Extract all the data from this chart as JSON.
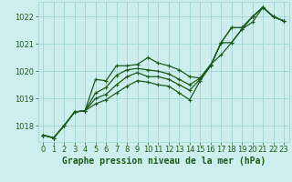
{
  "xlabel": "Graphe pression niveau de la mer (hPa)",
  "background_color": "#ceeeed",
  "grid_color": "#9dd4d3",
  "line_color": "#1a5c1a",
  "ylim": [
    1017.4,
    1022.55
  ],
  "xlim": [
    -0.5,
    23.5
  ],
  "yticks": [
    1018,
    1019,
    1020,
    1021,
    1022
  ],
  "xticks": [
    0,
    1,
    2,
    3,
    4,
    5,
    6,
    7,
    8,
    9,
    10,
    11,
    12,
    13,
    14,
    15,
    16,
    17,
    18,
    19,
    20,
    21,
    22,
    23
  ],
  "series": [
    [
      1017.65,
      1017.55,
      1018.0,
      1018.5,
      1018.55,
      1019.7,
      1019.65,
      1020.2,
      1020.2,
      1020.25,
      1020.5,
      1020.3,
      1020.2,
      1020.05,
      1019.8,
      1019.75,
      1020.2,
      1021.05,
      1021.05,
      1021.55,
      1022.0,
      1022.35,
      1022.0,
      1021.85
    ],
    [
      1017.65,
      1017.55,
      1018.0,
      1018.5,
      1018.55,
      1019.2,
      1019.4,
      1019.85,
      1020.05,
      1020.1,
      1020.05,
      1020.0,
      1019.9,
      1019.7,
      1019.5,
      1019.75,
      1020.25,
      1020.6,
      1021.05,
      1021.55,
      1021.8,
      1022.35,
      1022.0,
      1021.85
    ],
    [
      1017.65,
      1017.55,
      1018.0,
      1018.5,
      1018.55,
      1019.0,
      1019.15,
      1019.5,
      1019.8,
      1019.95,
      1019.8,
      1019.8,
      1019.7,
      1019.5,
      1019.3,
      1019.7,
      1020.2,
      1021.05,
      1021.6,
      1021.6,
      1022.0,
      1022.35,
      1022.0,
      1021.85
    ],
    [
      1017.65,
      1017.55,
      1018.0,
      1018.5,
      1018.55,
      1018.8,
      1018.95,
      1019.2,
      1019.45,
      1019.65,
      1019.6,
      1019.5,
      1019.45,
      1019.2,
      1018.95,
      1019.65,
      1020.2,
      1021.05,
      1021.6,
      1021.6,
      1022.0,
      1022.35,
      1022.0,
      1021.85
    ]
  ],
  "marker": "+",
  "markersize": 3.5,
  "linewidth": 0.9,
  "xlabel_fontsize": 7,
  "tick_fontsize": 6,
  "tick_color": "#1a5c1a"
}
